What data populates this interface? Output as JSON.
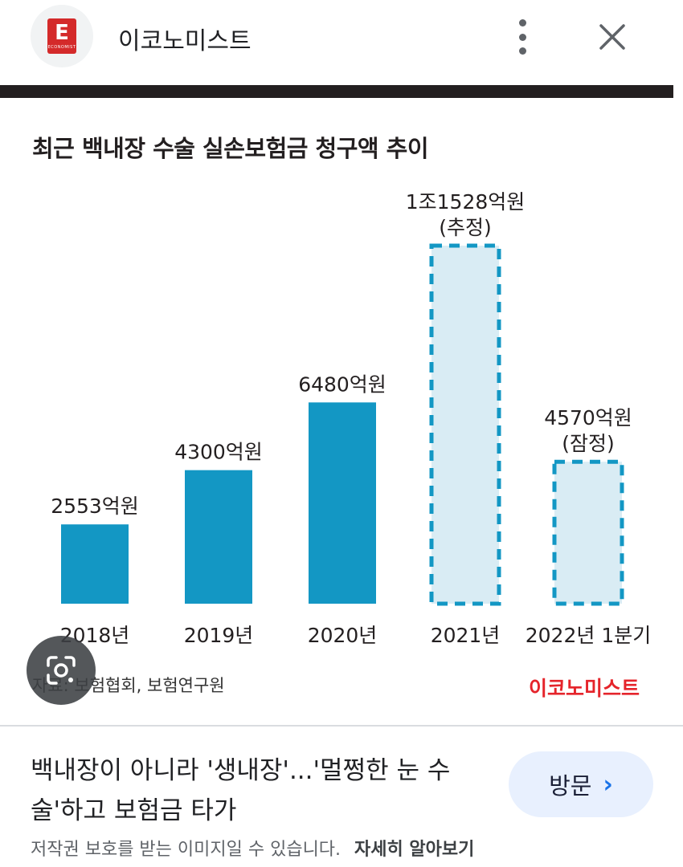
{
  "header": {
    "logo_letter": "E",
    "site_name": "이코노미스트",
    "more_icon": "more-vert-icon",
    "close_icon": "close-icon"
  },
  "image": {
    "chart_title": "최근 백내장 수술 실손보험금 청구액 추이",
    "source": "자료: 보험협회, 보험연구원",
    "brand": "이코노미스트",
    "lens_icon": "lens-icon"
  },
  "chart_data": {
    "type": "bar",
    "title": "최근 백내장 수술 실손보험금 청구액 추이",
    "xlabel": "",
    "ylabel": "",
    "categories": [
      "2018년",
      "2019년",
      "2020년",
      "2021년",
      "2022년 1분기"
    ],
    "values": [
      2553,
      4300,
      6480,
      11528,
      4570
    ],
    "unit": "억원",
    "data_labels": [
      [
        "2553억원"
      ],
      [
        "4300억원"
      ],
      [
        "6480억원"
      ],
      [
        "1조1528억원",
        "(추정)"
      ],
      [
        "4570억원",
        "(잠정)"
      ]
    ],
    "estimated": [
      false,
      false,
      false,
      true,
      true
    ],
    "colors": {
      "actual": "#1397c4",
      "estimated_fill": "#d9ecf4",
      "estimated_border": "#1397c4"
    },
    "legend": "none",
    "grid": false
  },
  "result": {
    "headline": "백내장이 아니라 '생내장'...'멀쩡한 눈 수술'하고 보험금 타가",
    "visit_label": "방문",
    "notice": "저작권 보호를 받는 이미지일 수 있습니다.",
    "learn_more": "자세히 알아보기"
  }
}
